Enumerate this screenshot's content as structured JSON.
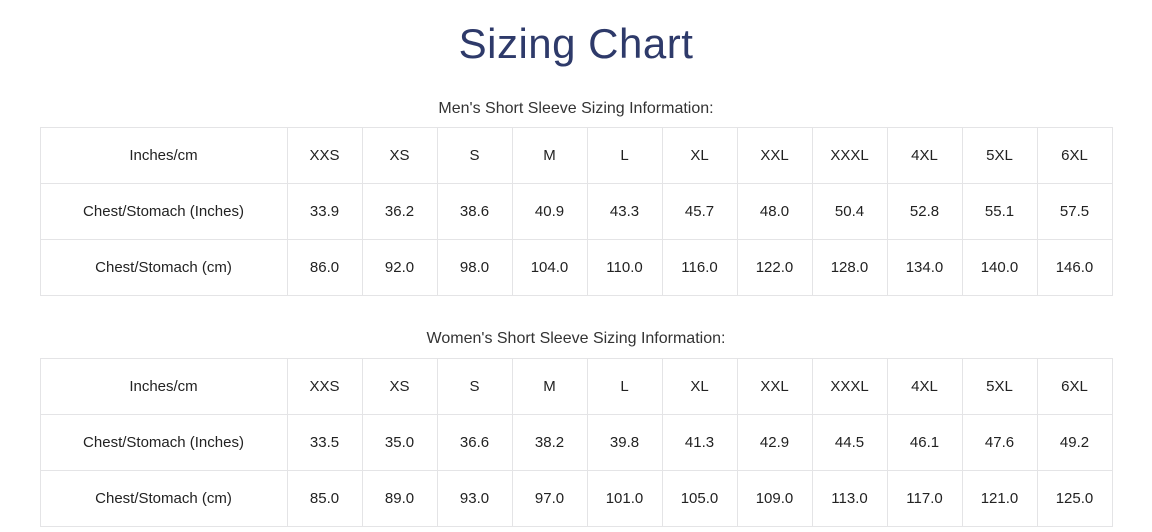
{
  "page": {
    "title": "Sizing Chart"
  },
  "colors": {
    "title_text": "#2e3a6a",
    "body_text": "#222222",
    "table_border": "#e4e4e6",
    "background": "#ffffff"
  },
  "tables": [
    {
      "heading": "Men's Short Sleeve Sizing Information:",
      "columns": [
        "Inches/cm",
        "XXS",
        "XS",
        "S",
        "M",
        "L",
        "XL",
        "XXL",
        "XXXL",
        "4XL",
        "5XL",
        "6XL"
      ],
      "rows": [
        {
          "label": "Chest/Stomach (Inches)",
          "values": [
            "33.9",
            "36.2",
            "38.6",
            "40.9",
            "43.3",
            "45.7",
            "48.0",
            "50.4",
            "52.8",
            "55.1",
            "57.5"
          ]
        },
        {
          "label": "Chest/Stomach (cm)",
          "values": [
            "86.0",
            "92.0",
            "98.0",
            "104.0",
            "110.0",
            "116.0",
            "122.0",
            "128.0",
            "134.0",
            "140.0",
            "146.0"
          ]
        }
      ]
    },
    {
      "heading": "Women's Short Sleeve Sizing Information:",
      "columns": [
        "Inches/cm",
        "XXS",
        "XS",
        "S",
        "M",
        "L",
        "XL",
        "XXL",
        "XXXL",
        "4XL",
        "5XL",
        "6XL"
      ],
      "rows": [
        {
          "label": "Chest/Stomach (Inches)",
          "values": [
            "33.5",
            "35.0",
            "36.6",
            "38.2",
            "39.8",
            "41.3",
            "42.9",
            "44.5",
            "46.1",
            "47.6",
            "49.2"
          ]
        },
        {
          "label": "Chest/Stomach (cm)",
          "values": [
            "85.0",
            "89.0",
            "93.0",
            "97.0",
            "101.0",
            "105.0",
            "109.0",
            "113.0",
            "117.0",
            "121.0",
            "125.0"
          ]
        }
      ]
    }
  ]
}
